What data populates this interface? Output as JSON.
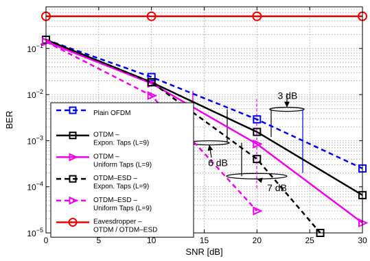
{
  "chart_data": {
    "type": "line",
    "xlabel": "SNR [dB]",
    "ylabel": "BER",
    "x_ticks": [
      "0",
      "5",
      "10",
      "15",
      "20",
      "25",
      "30"
    ],
    "y_ticks": [
      {
        "base": "10",
        "exp": "−5",
        "value": 1e-05
      },
      {
        "base": "10",
        "exp": "−4",
        "value": 0.0001
      },
      {
        "base": "10",
        "exp": "−3",
        "value": 0.001
      },
      {
        "base": "10",
        "exp": "−2",
        "value": 0.01
      },
      {
        "base": "10",
        "exp": "−1",
        "value": 0.1
      }
    ],
    "xlim": [
      0,
      30
    ],
    "ylim": [
      1e-05,
      0.8
    ],
    "yscale": "log",
    "grid": true,
    "legend_position": "lower-left",
    "series": [
      {
        "name": "Plain OFDM",
        "color": "#0000ee",
        "dash": true,
        "marker": "square",
        "x": [
          0,
          10,
          20,
          30
        ],
        "y": [
          0.155,
          0.024,
          0.0029,
          0.00025
        ]
      },
      {
        "name": "OTDM –\nExpon. Taps (L=9)",
        "color": "#000000",
        "dash": false,
        "marker": "square",
        "x": [
          0,
          10,
          20,
          30
        ],
        "y": [
          0.155,
          0.0185,
          0.00155,
          6.6e-05
        ]
      },
      {
        "name": "OTDM –\nUniform Taps (L=9)",
        "color": "#ee00ee",
        "dash": false,
        "marker": "triangle",
        "x": [
          0,
          10,
          20,
          30
        ],
        "y": [
          0.14,
          0.0175,
          0.00085,
          1.65e-05
        ]
      },
      {
        "name": "OTDM–ESD –\nExpon. Taps (L=9)",
        "color": "#000000",
        "dash": true,
        "marker": "square",
        "x": [
          0,
          10,
          20,
          26
        ],
        "y": [
          0.155,
          0.0185,
          0.0004,
          1e-05
        ]
      },
      {
        "name": "OTDM–ESD –\nUniform Taps (L=9)",
        "color": "#ee00ee",
        "dash": true,
        "marker": "triangle",
        "x": [
          0,
          10,
          20
        ],
        "y": [
          0.14,
          0.0095,
          3e-05
        ]
      },
      {
        "name": "Eavesdropper –\nOTDM / OTDM–ESD",
        "color": "#ee0000",
        "dash": false,
        "marker": "circle",
        "x": [
          0,
          10,
          20,
          30
        ],
        "y": [
          0.5,
          0.5,
          0.5,
          0.5
        ]
      }
    ],
    "annotations": [
      {
        "text": "3 dB",
        "x": 22.9,
        "y": 0.008
      },
      {
        "text": "6 dB",
        "x": 16.3,
        "y": 0.00028
      },
      {
        "text": "7 dB",
        "x": 21.9,
        "y": 8e-05
      }
    ]
  }
}
